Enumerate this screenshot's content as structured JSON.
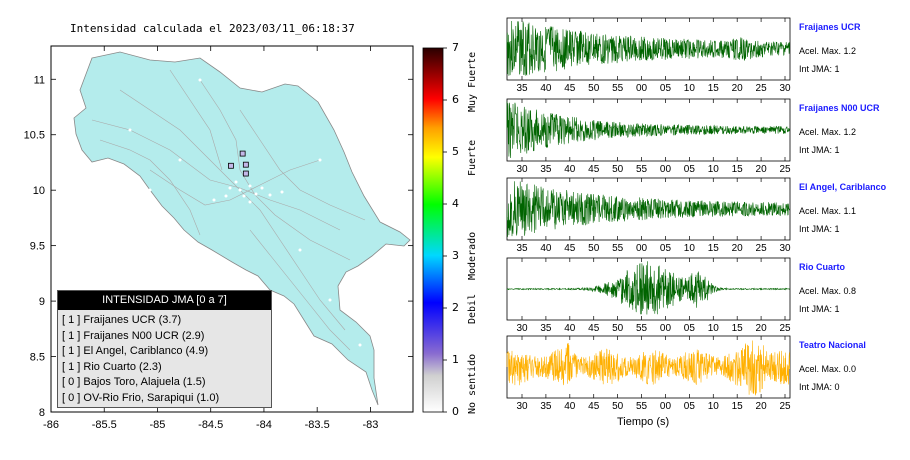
{
  "map": {
    "title": "Intensidad calculada el 2023/03/11_06:18:37",
    "x_ticks": [
      "-86",
      "-85.5",
      "-85",
      "-84.5",
      "-84",
      "-83.5",
      "-83"
    ],
    "x_tick_values": [
      -86,
      -85.5,
      -85,
      -84.5,
      -84,
      -83.5,
      -83
    ],
    "y_ticks": [
      "11",
      "10.5",
      "10",
      "9.5",
      "9",
      "8.5",
      "8"
    ],
    "y_tick_values": [
      11,
      10.5,
      10,
      9.5,
      9,
      8.5,
      8
    ],
    "lon_range": [
      -86,
      -82.6
    ],
    "lat_range": [
      8,
      11.3
    ],
    "land_color": "#b4ecec",
    "stations": [
      {
        "lon": -84.2,
        "lat": 10.33,
        "intensity": 1
      },
      {
        "lon": -84.17,
        "lat": 10.23,
        "intensity": 1
      },
      {
        "lon": -84.31,
        "lat": 10.22,
        "intensity": 1
      },
      {
        "lon": -84.17,
        "lat": 10.15,
        "intensity": 1
      }
    ]
  },
  "legend": {
    "header": "INTENSIDAD JMA [0 a 7]",
    "rows": [
      "[ 1 ]  Fraijanes UCR (3.7)",
      "[ 1 ]  Fraijanes N00 UCR (2.9)",
      "[ 1 ]  El Angel, Cariblanco (4.9)",
      "[ 1 ]  Rio Cuarto (2.3)",
      "[ 0 ]  Bajos Toro, Alajuela (1.5)",
      "[ 0 ]  OV-Rio Frio, Sarapiqui (1.0)"
    ]
  },
  "scale": {
    "ticks": [
      "7",
      "6",
      "5",
      "4",
      "3",
      "2",
      "1",
      "0"
    ],
    "categories": [
      "Muy Fuerte",
      "Fuerte",
      "Moderado",
      "Debil",
      "No sentido"
    ],
    "colors": [
      "#2a0000",
      "#ff0000",
      "#ff8c00",
      "#ffff00",
      "#00ff00",
      "#00d0ff",
      "#0000ff",
      "#6a4cc0",
      "#ffffff"
    ]
  },
  "waveforms": [
    {
      "name": "Fraijanes UCR",
      "accel": "Acel. Max. 1.2",
      "jma": "Int JMA: 1",
      "color": "#006400",
      "ticks": [
        "35",
        "40",
        "45",
        "50",
        "55",
        "00",
        "05",
        "10",
        "15",
        "20",
        "25",
        "30"
      ]
    },
    {
      "name": "Fraijanes N00 UCR",
      "accel": "Acel. Max. 1.2",
      "jma": "Int JMA: 1",
      "color": "#006400",
      "ticks": [
        "30",
        "35",
        "40",
        "45",
        "50",
        "55",
        "00",
        "05",
        "10",
        "15",
        "20",
        "25"
      ]
    },
    {
      "name": "El Angel, Cariblanco",
      "accel": "Acel. Max. 1.1",
      "jma": "Int JMA: 1",
      "color": "#006400",
      "ticks": [
        "35",
        "40",
        "45",
        "50",
        "55",
        "00",
        "05",
        "10",
        "15",
        "20",
        "25",
        "30"
      ]
    },
    {
      "name": "Rio Cuarto",
      "accel": "Acel. Max. 0.8",
      "jma": "Int JMA: 1",
      "color": "#006400",
      "ticks": [
        "30",
        "35",
        "40",
        "45",
        "50",
        "55",
        "00",
        "05",
        "10",
        "15",
        "20",
        "25"
      ]
    },
    {
      "name": "Teatro Nacional",
      "accel": "Acel. Max. 0.0",
      "jma": "Int JMA: 0",
      "color": "#ffb000",
      "ticks": [
        "30",
        "35",
        "40",
        "45",
        "50",
        "55",
        "00",
        "05",
        "10",
        "15",
        "20",
        "25"
      ]
    }
  ],
  "xlabel": "Tiempo (s)"
}
